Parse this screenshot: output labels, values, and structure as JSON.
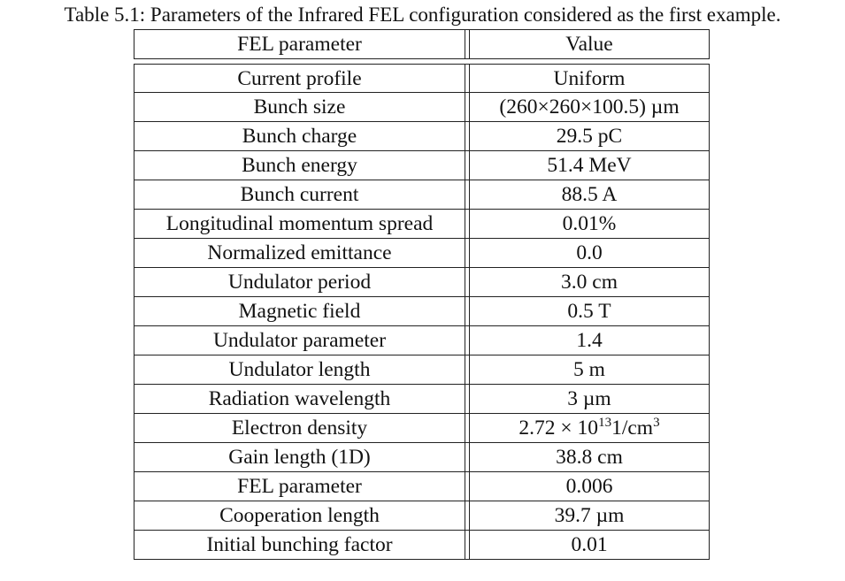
{
  "caption": "Table 5.1: Parameters of the Infrared FEL configuration considered as the first example.",
  "table": {
    "headers": [
      "FEL parameter",
      "Value"
    ],
    "rows": [
      {
        "param": "Current profile",
        "value": "Uniform"
      },
      {
        "param": "Bunch size",
        "value": "(260×260×100.5) µm"
      },
      {
        "param": "Bunch charge",
        "value": "29.5 pC"
      },
      {
        "param": "Bunch energy",
        "value": "51.4 MeV"
      },
      {
        "param": "Bunch current",
        "value": "88.5 A"
      },
      {
        "param": "Longitudinal momentum spread",
        "value": "0.01%"
      },
      {
        "param": "Normalized emittance",
        "value": "0.0"
      },
      {
        "param": "Undulator period",
        "value": "3.0 cm"
      },
      {
        "param": "Magnetic field",
        "value": "0.5 T"
      },
      {
        "param": "Undulator parameter",
        "value": "1.4"
      },
      {
        "param": "Undulator length",
        "value": "5 m"
      },
      {
        "param": "Radiation wavelength",
        "value": "3 µm"
      },
      {
        "param": "Electron density",
        "value_base": "2.72 × 10",
        "value_exp": "13",
        "value_unit": "1/cm",
        "value_unit_exp": "3"
      },
      {
        "param": "Gain length (1D)",
        "value": "38.8 cm"
      },
      {
        "param": "FEL parameter",
        "value": "0.006"
      },
      {
        "param": "Cooperation length",
        "value": "39.7 µm"
      },
      {
        "param": "Initial bunching factor",
        "value": "0.01"
      }
    ]
  }
}
